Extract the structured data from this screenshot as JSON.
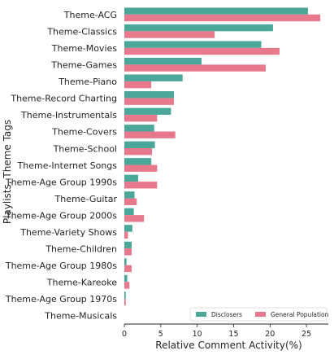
{
  "chart_data": {
    "type": "bar",
    "orientation": "horizontal",
    "categories": [
      "Theme-ACG",
      "Theme-Classics",
      "Theme-Movies",
      "Theme-Games",
      "Theme-Piano",
      "Theme-Record Charting",
      "Theme-Instrumentals",
      "Theme-Covers",
      "Theme-School",
      "Theme-Internet Songs",
      "Theme-Age Group 1990s",
      "Theme-Guitar",
      "Theme-Age Group 2000s",
      "Theme-Variety Shows",
      "Theme-Children",
      "Theme-Age Group 1980s",
      "Theme-Kareoke",
      "Theme-Age Group 1970s",
      "Theme-Musicals"
    ],
    "series": [
      {
        "name": "Disclosers",
        "color": "#4aa79a",
        "values": [
          25.2,
          20.4,
          18.8,
          10.6,
          8.0,
          6.8,
          6.4,
          4.1,
          4.2,
          3.7,
          1.9,
          1.4,
          1.3,
          1.1,
          1.0,
          0.3,
          0.4,
          0.2,
          0.0
        ]
      },
      {
        "name": "General Population",
        "color": "#e8798c",
        "values": [
          26.9,
          12.4,
          21.3,
          19.4,
          3.7,
          6.8,
          4.5,
          7.0,
          3.8,
          4.5,
          4.5,
          1.7,
          2.7,
          0.5,
          1.0,
          1.0,
          0.7,
          0.2,
          0.0
        ]
      }
    ],
    "xlabel": "Relative Comment Activity(%)",
    "ylabel": "Playlists, Theme Tags",
    "xlim": [
      0,
      28
    ],
    "xticks": [
      0,
      5,
      10,
      15,
      20,
      25
    ],
    "grid": false,
    "legend_position": "lower-right"
  }
}
